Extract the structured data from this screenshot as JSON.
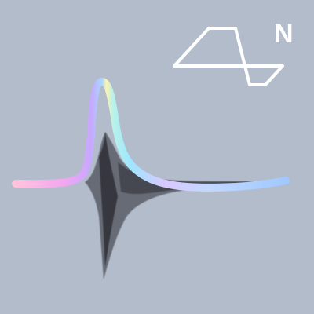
{
  "logo": {
    "letter": "N",
    "mark_color": "#ffffff"
  },
  "colors": {
    "background": "#b3bccb",
    "waveform_shadow": "#1e1e24",
    "gradient": [
      "#ffc0d8",
      "#e3a4ff",
      "#9fd3ff",
      "#9ef0f2",
      "#fff2b0",
      "#b8c8ff"
    ]
  },
  "icons": {
    "logo_mark": "stylized-n-pulse-logo-icon",
    "waveform": "spectral-waveform-icon"
  }
}
